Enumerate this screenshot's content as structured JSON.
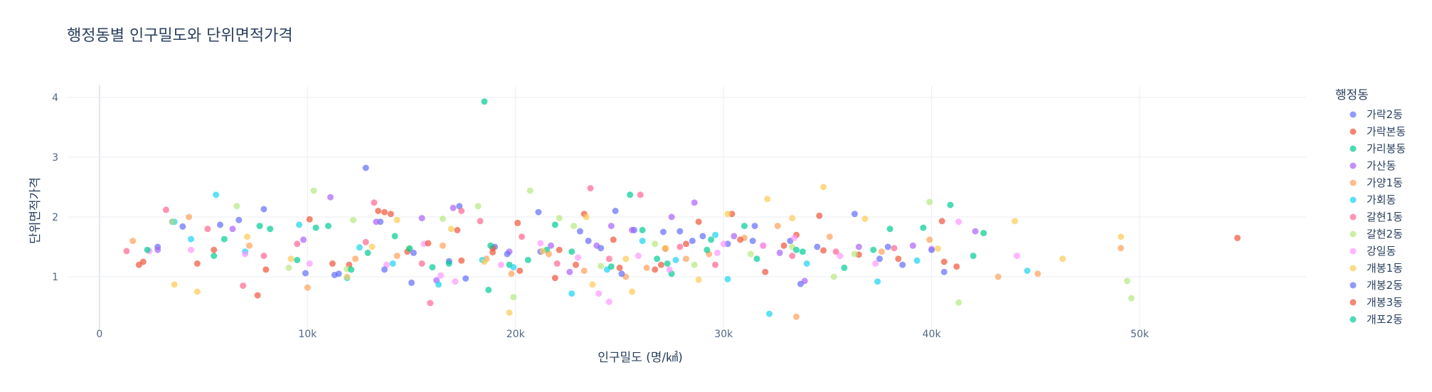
{
  "chart_data": {
    "type": "scatter",
    "title": "행정동별 인구밀도와 단위면적가격",
    "xlabel": "인구밀도 (명/㎢)",
    "ylabel": "단위면적가격",
    "xlim": [
      -1500,
      58000
    ],
    "ylim": [
      0.12,
      4.2
    ],
    "x_ticks": [
      0,
      10000,
      20000,
      30000,
      40000,
      50000
    ],
    "x_tick_labels": [
      "0",
      "10k",
      "20k",
      "30k",
      "40k",
      "50k"
    ],
    "y_ticks": [
      1,
      2,
      3,
      4
    ],
    "y_tick_labels": [
      "1",
      "2",
      "3",
      "4"
    ],
    "grid": true,
    "legend_title": "행정동",
    "legend_position": "right",
    "series": [
      {
        "name": "가락2동",
        "color": "#636efa",
        "points": [
          [
            2800,
            1.5
          ],
          [
            3500,
            1.92
          ],
          [
            7900,
            2.13
          ],
          [
            12800,
            2.82
          ],
          [
            13500,
            1.92
          ],
          [
            15000,
            0.9
          ],
          [
            17300,
            2.18
          ],
          [
            19000,
            1.5
          ],
          [
            21200,
            1.42
          ],
          [
            23500,
            1.6
          ],
          [
            24800,
            2.1
          ],
          [
            25700,
            1.78
          ],
          [
            27900,
            1.76
          ],
          [
            30200,
            1.55
          ],
          [
            31500,
            1.85
          ],
          [
            33200,
            1.6
          ],
          [
            34500,
            1.5
          ],
          [
            37500,
            1.3
          ],
          [
            38600,
            1.2
          ],
          [
            40600,
            1.08
          ],
          [
            6700,
            1.95
          ],
          [
            11500,
            1.05
          ],
          [
            16800,
            1.26
          ],
          [
            28500,
            1.6
          ]
        ]
      },
      {
        "name": "가락본동",
        "color": "#ef553b",
        "points": [
          [
            1900,
            1.2
          ],
          [
            4700,
            1.22
          ],
          [
            7600,
            0.69
          ],
          [
            10100,
            1.96
          ],
          [
            14000,
            2.05
          ],
          [
            17200,
            1.78
          ],
          [
            18900,
            1.41
          ],
          [
            20200,
            1.1
          ],
          [
            22100,
            1.45
          ],
          [
            23300,
            2.05
          ],
          [
            25000,
            1.15
          ],
          [
            27200,
            1.47
          ],
          [
            28800,
            1.92
          ],
          [
            30400,
            2.05
          ],
          [
            32000,
            1.08
          ],
          [
            33500,
            1.7
          ],
          [
            34800,
            1.44
          ],
          [
            40500,
            1.93
          ],
          [
            41200,
            1.17
          ],
          [
            54700,
            1.65
          ],
          [
            13700,
            2.08
          ],
          [
            21900,
            0.98
          ],
          [
            36500,
            1.37
          ],
          [
            12000,
            1.2
          ]
        ]
      },
      {
        "name": "가리봉동",
        "color": "#00cc96",
        "points": [
          [
            5500,
            1.35
          ],
          [
            7700,
            1.85
          ],
          [
            10400,
            1.82
          ],
          [
            14200,
            1.68
          ],
          [
            16000,
            1.16
          ],
          [
            18500,
            3.93
          ],
          [
            18700,
            0.78
          ],
          [
            21500,
            1.45
          ],
          [
            25500,
            2.37
          ],
          [
            26800,
            1.3
          ],
          [
            29400,
            1.62
          ],
          [
            31000,
            1.85
          ],
          [
            33800,
            1.42
          ],
          [
            38000,
            1.8
          ],
          [
            40900,
            2.2
          ],
          [
            42500,
            1.73
          ],
          [
            8200,
            1.8
          ],
          [
            12900,
            1.4
          ],
          [
            19700,
            1.2
          ],
          [
            27500,
            1.05
          ],
          [
            35800,
            1.15
          ]
        ]
      },
      {
        "name": "가산동",
        "color": "#ab63fa",
        "points": [
          [
            2800,
            1.45
          ],
          [
            6400,
            1.8
          ],
          [
            9800,
            1.62
          ],
          [
            11100,
            2.33
          ],
          [
            13300,
            1.92
          ],
          [
            15500,
            1.98
          ],
          [
            17000,
            2.15
          ],
          [
            19700,
            1.42
          ],
          [
            21700,
            1.52
          ],
          [
            22600,
            1.08
          ],
          [
            23900,
            1.52
          ],
          [
            25600,
            1.78
          ],
          [
            27500,
            2.0
          ],
          [
            28600,
            2.24
          ],
          [
            30500,
            1.68
          ],
          [
            32700,
            1.4
          ],
          [
            36500,
            1.5
          ],
          [
            39100,
            1.52
          ],
          [
            42100,
            1.76
          ],
          [
            16200,
            0.94
          ],
          [
            24600,
            1.85
          ],
          [
            33900,
            0.93
          ]
        ]
      },
      {
        "name": "가양1동",
        "color": "#ffa15a",
        "points": [
          [
            1600,
            1.6
          ],
          [
            4300,
            2.0
          ],
          [
            7200,
            1.52
          ],
          [
            10000,
            0.82
          ],
          [
            12300,
            1.3
          ],
          [
            14300,
            1.35
          ],
          [
            16500,
            1.52
          ],
          [
            18600,
            1.3
          ],
          [
            19800,
            1.05
          ],
          [
            21600,
            1.38
          ],
          [
            23300,
            1.1
          ],
          [
            25300,
            1.0
          ],
          [
            26300,
            1.15
          ],
          [
            28200,
            1.3
          ],
          [
            29300,
            1.38
          ],
          [
            31000,
            1.65
          ],
          [
            32600,
            1.85
          ],
          [
            33500,
            0.33
          ],
          [
            35100,
            1.67
          ],
          [
            37600,
            1.42
          ],
          [
            39900,
            1.62
          ],
          [
            43200,
            1.0
          ],
          [
            45100,
            1.05
          ],
          [
            49100,
            1.48
          ]
        ]
      },
      {
        "name": "가회동",
        "color": "#19d3f3",
        "points": [
          [
            3600,
            1.92
          ],
          [
            5600,
            2.37
          ],
          [
            7000,
            1.42
          ],
          [
            9600,
            1.87
          ],
          [
            12500,
            1.49
          ],
          [
            14100,
            1.22
          ],
          [
            16300,
            0.87
          ],
          [
            18400,
            1.28
          ],
          [
            19900,
            1.16
          ],
          [
            22700,
            0.72
          ],
          [
            24400,
            1.12
          ],
          [
            26100,
            1.6
          ],
          [
            27700,
            1.28
          ],
          [
            30200,
            0.96
          ],
          [
            32200,
            0.38
          ],
          [
            34000,
            1.22
          ],
          [
            37400,
            0.92
          ],
          [
            39300,
            1.27
          ],
          [
            44600,
            1.1
          ],
          [
            4400,
            1.63
          ],
          [
            11900,
            0.98
          ],
          [
            29600,
            1.7
          ]
        ]
      },
      {
        "name": "갈현1동",
        "color": "#ff6692",
        "points": [
          [
            1300,
            1.43
          ],
          [
            3200,
            2.12
          ],
          [
            5200,
            1.8
          ],
          [
            7900,
            1.35
          ],
          [
            9500,
            1.55
          ],
          [
            12800,
            1.58
          ],
          [
            13200,
            2.24
          ],
          [
            15900,
            0.56
          ],
          [
            17400,
            2.1
          ],
          [
            18300,
            1.93
          ],
          [
            20300,
            1.67
          ],
          [
            22000,
            1.22
          ],
          [
            23600,
            2.48
          ],
          [
            24500,
            1.3
          ],
          [
            26000,
            2.37
          ],
          [
            27900,
            1.5
          ],
          [
            29600,
            1.2
          ],
          [
            31900,
            1.52
          ],
          [
            35400,
            1.42
          ],
          [
            38200,
            1.48
          ],
          [
            6900,
            0.85
          ],
          [
            15500,
            1.22
          ],
          [
            33300,
            1.35
          ]
        ]
      },
      {
        "name": "갈현2동",
        "color": "#b6e880",
        "points": [
          [
            3500,
            1.92
          ],
          [
            6600,
            2.18
          ],
          [
            9100,
            1.15
          ],
          [
            10300,
            2.44
          ],
          [
            12200,
            1.95
          ],
          [
            14900,
            1.48
          ],
          [
            16500,
            1.97
          ],
          [
            18200,
            2.18
          ],
          [
            19900,
            0.66
          ],
          [
            20700,
            2.44
          ],
          [
            22100,
            1.98
          ],
          [
            24100,
            1.18
          ],
          [
            26700,
            1.55
          ],
          [
            28600,
            1.2
          ],
          [
            31300,
            1.38
          ],
          [
            33300,
            1.5
          ],
          [
            36300,
            1.38
          ],
          [
            39900,
            2.25
          ],
          [
            41300,
            0.57
          ],
          [
            49400,
            0.93
          ],
          [
            49600,
            0.64
          ],
          [
            11900,
            1.13
          ],
          [
            22800,
            1.85
          ],
          [
            35300,
            1.0
          ]
        ]
      },
      {
        "name": "강일동",
        "color": "#ff97ff",
        "points": [
          [
            2400,
            1.43
          ],
          [
            4400,
            1.45
          ],
          [
            7000,
            1.38
          ],
          [
            10100,
            1.22
          ],
          [
            13800,
            1.2
          ],
          [
            15600,
            1.55
          ],
          [
            17100,
            0.92
          ],
          [
            19300,
            1.2
          ],
          [
            21200,
            1.56
          ],
          [
            23000,
            1.32
          ],
          [
            24000,
            0.72
          ],
          [
            25900,
            1.35
          ],
          [
            27400,
            1.12
          ],
          [
            29700,
            1.4
          ],
          [
            31900,
            1.52
          ],
          [
            33400,
            1.65
          ],
          [
            35600,
            1.35
          ],
          [
            37300,
            1.22
          ],
          [
            40000,
            1.47
          ],
          [
            41300,
            1.92
          ],
          [
            44100,
            1.35
          ],
          [
            24500,
            0.58
          ],
          [
            16400,
            1.02
          ],
          [
            30000,
            1.55
          ]
        ]
      },
      {
        "name": "개봉1동",
        "color": "#fecb52",
        "points": [
          [
            3600,
            0.87
          ],
          [
            4700,
            0.75
          ],
          [
            7100,
            1.67
          ],
          [
            9200,
            1.3
          ],
          [
            11900,
            1.0
          ],
          [
            13100,
            1.5
          ],
          [
            14300,
            1.95
          ],
          [
            16900,
            1.8
          ],
          [
            18500,
            1.25
          ],
          [
            19700,
            0.4
          ],
          [
            21300,
            1.43
          ],
          [
            23400,
            2.0
          ],
          [
            25300,
            1.3
          ],
          [
            27200,
            1.48
          ],
          [
            28800,
            0.95
          ],
          [
            30200,
            2.05
          ],
          [
            32100,
            2.3
          ],
          [
            33300,
            1.98
          ],
          [
            34800,
            2.5
          ],
          [
            36800,
            1.97
          ],
          [
            40300,
            1.47
          ],
          [
            44000,
            1.93
          ],
          [
            46300,
            1.3
          ],
          [
            49100,
            1.67
          ],
          [
            23700,
            0.87
          ],
          [
            25600,
            0.75
          ]
        ]
      },
      {
        "name": "개봉2동",
        "color": "#636efa",
        "points": [
          [
            4000,
            1.84
          ],
          [
            5800,
            1.87
          ],
          [
            9900,
            1.06
          ],
          [
            11300,
            1.03
          ],
          [
            15100,
            1.4
          ],
          [
            17600,
            0.97
          ],
          [
            19600,
            1.38
          ],
          [
            21100,
            2.08
          ],
          [
            23100,
            1.76
          ],
          [
            24100,
            1.48
          ],
          [
            25100,
            1.05
          ],
          [
            27100,
            1.75
          ],
          [
            29000,
            1.68
          ],
          [
            31400,
            1.6
          ],
          [
            33700,
            0.88
          ],
          [
            36300,
            2.05
          ],
          [
            37900,
            1.5
          ],
          [
            40000,
            1.45
          ],
          [
            13700,
            1.12
          ]
        ]
      },
      {
        "name": "개봉3동",
        "color": "#ef553b",
        "points": [
          [
            2100,
            1.25
          ],
          [
            5500,
            1.45
          ],
          [
            8000,
            1.12
          ],
          [
            11200,
            1.22
          ],
          [
            13400,
            2.1
          ],
          [
            14800,
            1.42
          ],
          [
            17400,
            1.27
          ],
          [
            18900,
            1.48
          ],
          [
            20100,
            1.9
          ],
          [
            22900,
            1.2
          ],
          [
            24700,
            1.62
          ],
          [
            27000,
            1.2
          ],
          [
            28200,
            1.55
          ],
          [
            30800,
            1.62
          ],
          [
            32900,
            1.52
          ],
          [
            34600,
            2.02
          ],
          [
            38400,
            1.3
          ],
          [
            40600,
            1.25
          ],
          [
            15800,
            1.56
          ],
          [
            26700,
            1.12
          ]
        ]
      },
      {
        "name": "개포2동",
        "color": "#00cc96",
        "points": [
          [
            2300,
            1.45
          ],
          [
            6000,
            1.63
          ],
          [
            9500,
            1.28
          ],
          [
            12100,
            1.12
          ],
          [
            14900,
            1.47
          ],
          [
            16800,
            1.22
          ],
          [
            18800,
            1.52
          ],
          [
            20600,
            1.28
          ],
          [
            22700,
            1.42
          ],
          [
            24600,
            1.17
          ],
          [
            26100,
            1.78
          ],
          [
            27300,
            1.22
          ],
          [
            29200,
            1.45
          ],
          [
            31600,
            1.3
          ],
          [
            33500,
            1.45
          ],
          [
            37200,
            1.45
          ],
          [
            39600,
            1.82
          ],
          [
            42000,
            1.35
          ],
          [
            11000,
            1.85
          ],
          [
            21900,
            1.87
          ]
        ]
      }
    ]
  }
}
